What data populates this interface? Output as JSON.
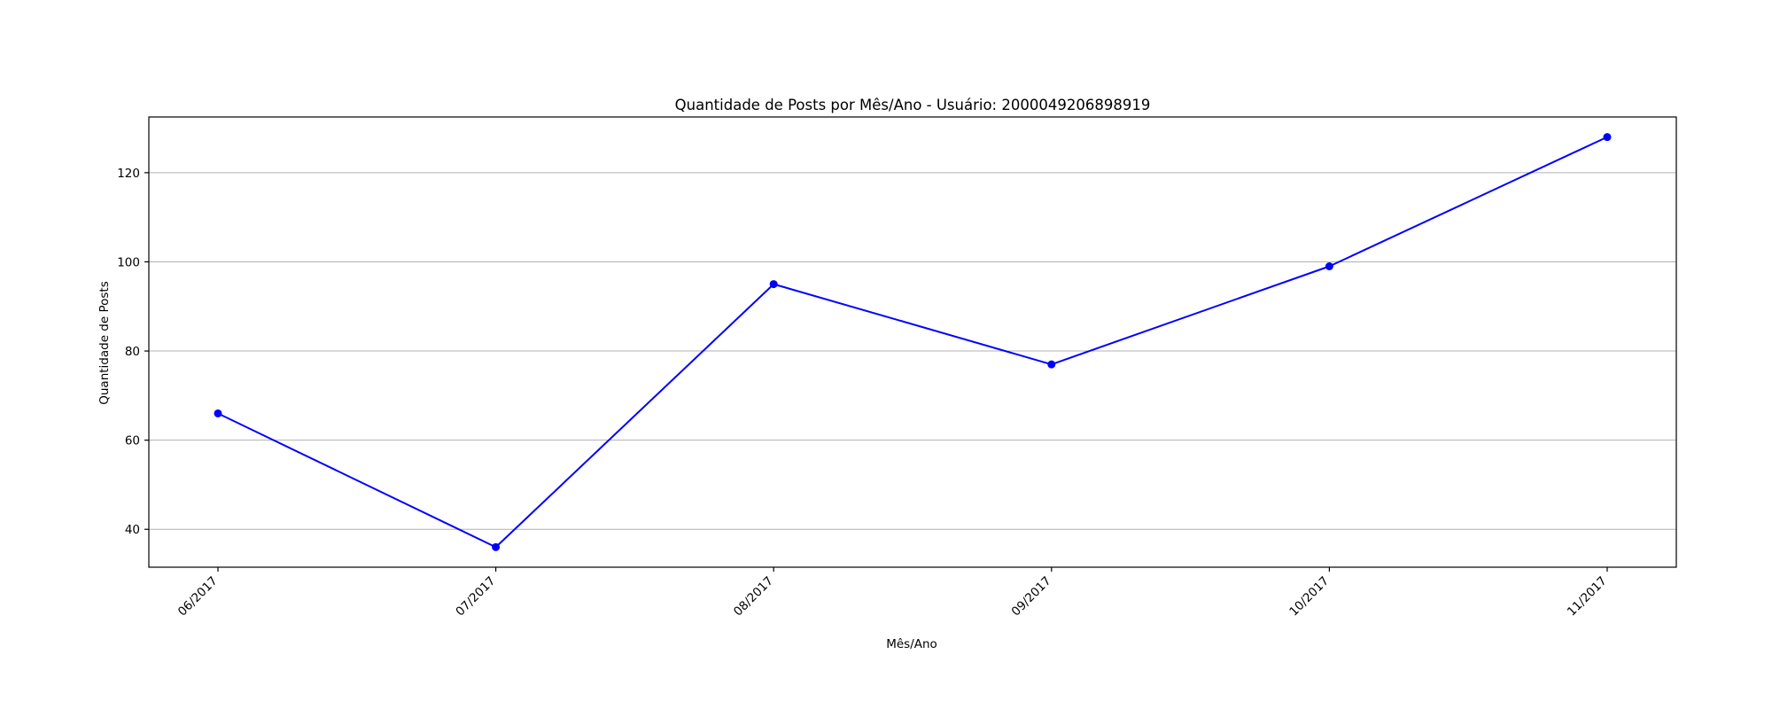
{
  "chart_data": {
    "type": "line",
    "title": "Quantidade de Posts por Mês/Ano - Usuário: 2000049206898919",
    "xlabel": "Mês/Ano",
    "ylabel": "Quantidade de Posts",
    "categories": [
      "06/2017",
      "07/2017",
      "08/2017",
      "09/2017",
      "10/2017",
      "11/2017"
    ],
    "series": [
      {
        "values": [
          66,
          36,
          95,
          77,
          99,
          128
        ],
        "color": "#0000ff",
        "marker": "circle"
      }
    ],
    "ylim": [
      31.5,
      132.5
    ],
    "yticks": [
      "40",
      "60",
      "80",
      "100",
      "120"
    ],
    "grid": "y",
    "legend": "none"
  }
}
